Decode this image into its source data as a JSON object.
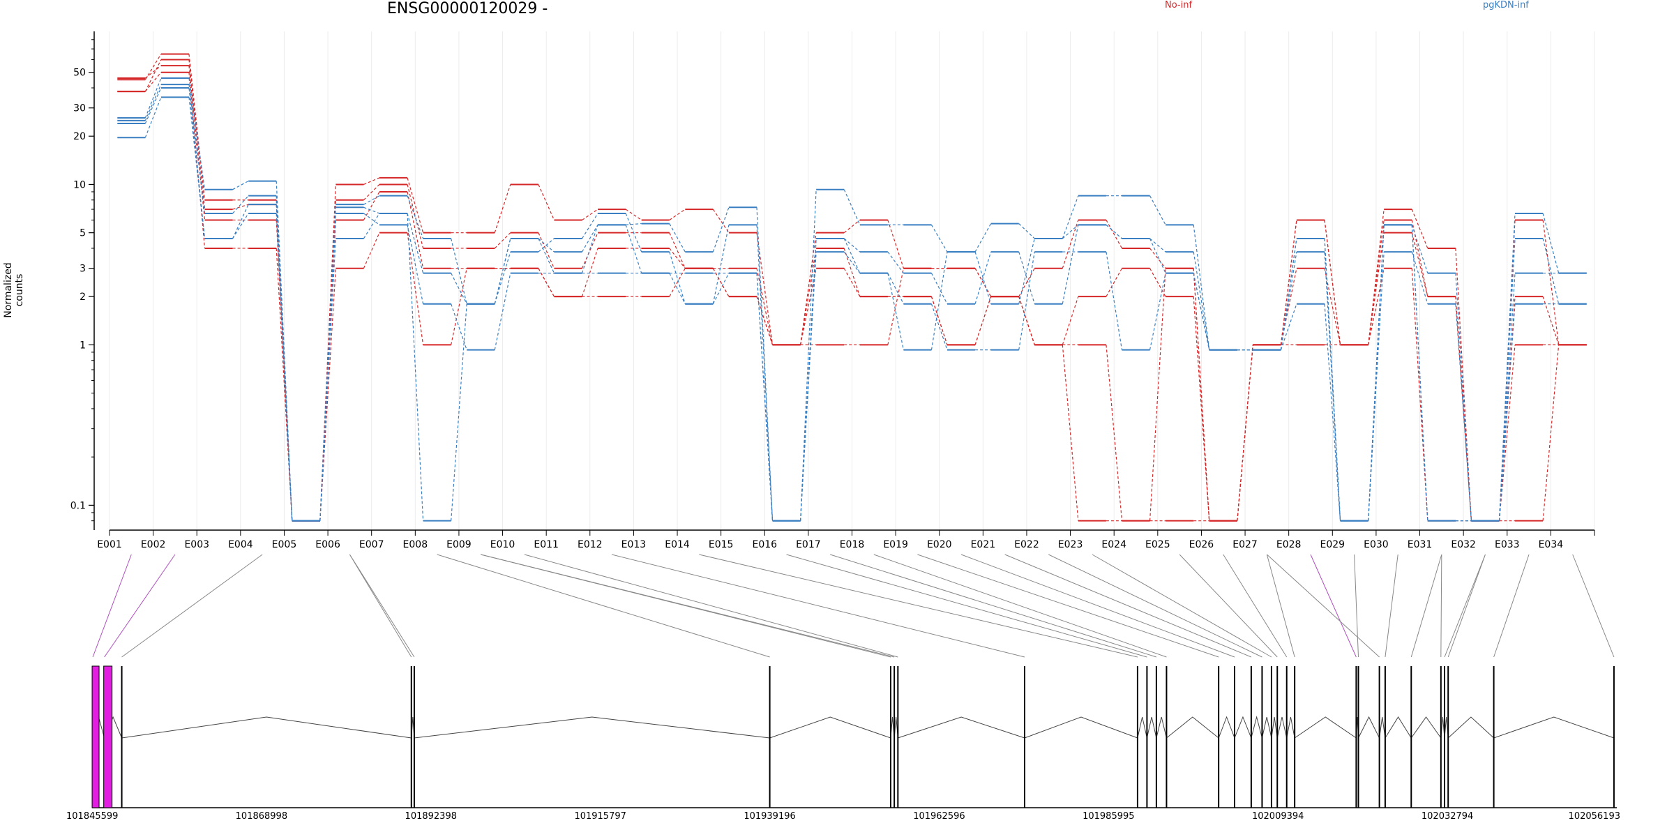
{
  "chart_data": {
    "type": "line",
    "title": "ENSG00000120029 -",
    "ylabel": "Normalized counts",
    "y_scale": "log",
    "ylim": [
      0.07,
      90
    ],
    "y_ticks": [
      {
        "value": 0.1,
        "label": "0.1"
      },
      {
        "value": 1,
        "label": "1"
      },
      {
        "value": 2,
        "label": "2"
      },
      {
        "value": 3,
        "label": "3"
      },
      {
        "value": 5,
        "label": "5"
      },
      {
        "value": 10,
        "label": "10"
      },
      {
        "value": 20,
        "label": "20"
      },
      {
        "value": 30,
        "label": "30"
      },
      {
        "value": 50,
        "label": "50"
      }
    ],
    "grid": "vertical",
    "legend": {
      "position": "top",
      "entries": [
        "No-inf",
        "pgKDN-inf"
      ]
    },
    "colors": {
      "No-inf": "#d62728",
      "pgKDN-inf": "#3a7fc1",
      "first_exons": "#e21fe0",
      "connector_first": "#b04fc0",
      "connector_default": "#888888"
    },
    "categories": [
      "E001",
      "E002",
      "E003",
      "E004",
      "E005",
      "E006",
      "E007",
      "E008",
      "E009",
      "E010",
      "E011",
      "E012",
      "E013",
      "E014",
      "E015",
      "E016",
      "E017",
      "E018",
      "E019",
      "E020",
      "E021",
      "E022",
      "E023",
      "E024",
      "E025",
      "E026",
      "E027",
      "E028",
      "E029",
      "E030",
      "E031",
      "E032",
      "E033",
      "E034"
    ],
    "series": [
      {
        "group": "No-inf",
        "values": [
          45,
          65,
          8,
          8,
          0.08,
          10,
          11,
          5,
          5,
          10,
          6,
          7,
          6,
          7,
          5,
          1,
          5,
          6,
          3,
          3,
          2,
          3,
          6,
          4,
          3,
          0.08,
          1,
          6,
          1,
          7,
          4,
          0.08,
          6,
          1
        ]
      },
      {
        "group": "No-inf",
        "values": [
          38,
          60,
          7,
          7.5,
          0.08,
          8,
          10,
          4,
          4,
          5,
          3,
          5,
          5,
          3,
          3,
          1,
          4,
          2,
          2,
          1,
          2,
          1,
          2,
          3,
          2,
          0.08,
          1,
          3,
          1,
          6,
          2,
          0.08,
          2,
          1
        ]
      },
      {
        "group": "No-inf",
        "values": [
          46,
          55,
          6,
          6,
          0.08,
          6,
          9,
          3,
          3,
          3,
          2,
          4,
          4,
          3,
          2,
          1,
          1,
          1,
          3,
          3,
          2,
          1,
          1,
          0.08,
          3,
          0.08,
          1,
          1,
          1,
          5,
          2,
          0.08,
          1,
          1
        ]
      },
      {
        "group": "No-inf",
        "values": [
          38,
          50,
          4,
          4,
          0.08,
          3,
          5,
          1,
          3,
          3,
          2,
          2,
          2,
          3,
          2,
          1,
          3,
          2,
          2,
          1,
          2,
          1,
          0.08,
          0.08,
          0.08,
          0.08,
          1,
          6,
          1,
          3,
          0.08,
          0.08,
          0.08,
          1
        ]
      },
      {
        "group": "pgKDN-inf",
        "values": [
          26,
          46,
          9.3,
          10.5,
          0.08,
          7.5,
          8.5,
          4.6,
          1.8,
          4.6,
          3.8,
          5.6,
          5.7,
          3.8,
          7.2,
          0.08,
          9.3,
          5.6,
          5.6,
          3.8,
          5.7,
          4.6,
          8.5,
          8.5,
          5.6,
          0.93,
          0.93,
          4.6,
          0.08,
          5.6,
          2.8,
          0.08,
          6.6,
          2.8
        ]
      },
      {
        "group": "pgKDN-inf",
        "values": [
          25,
          42,
          6.6,
          8.5,
          0.08,
          7.2,
          6.6,
          2.8,
          1.8,
          3.8,
          4.6,
          6.6,
          3.8,
          1.8,
          5.6,
          0.08,
          4.6,
          3.8,
          2.8,
          1.8,
          3.8,
          1.8,
          5.6,
          4.6,
          3.8,
          0.93,
          0.93,
          3.8,
          0.08,
          3.8,
          1.8,
          0.08,
          4.6,
          1.8
        ]
      },
      {
        "group": "pgKDN-inf",
        "values": [
          24,
          40,
          4.6,
          7.5,
          0.08,
          6.6,
          5.6,
          1.8,
          0.93,
          2.8,
          2.8,
          2.8,
          2.8,
          2.8,
          2.8,
          0.08,
          3.8,
          2.8,
          1.8,
          0.93,
          0.93,
          3.8,
          3.8,
          0.93,
          2.8,
          0.93,
          0.93,
          1.8,
          0.08,
          5.6,
          0.08,
          0.08,
          2.8,
          2.8
        ]
      },
      {
        "group": "pgKDN-inf",
        "values": [
          19.6,
          35,
          4.6,
          6.6,
          0.08,
          4.6,
          6.6,
          0.08,
          1.8,
          4.6,
          2.8,
          5.6,
          2.8,
          1.8,
          2.8,
          0.08,
          4.6,
          2.8,
          0.93,
          3.8,
          1.8,
          4.6,
          5.6,
          4.6,
          2.8,
          0.93,
          0.93,
          4.6,
          0.08,
          5.6,
          0.08,
          0.08,
          1.8,
          1.8
        ]
      }
    ],
    "gene_model": {
      "coordinate_labels": [
        "101845599",
        "101868998",
        "101892398",
        "101915797",
        "101939196",
        "101962596",
        "101985995",
        "102009394",
        "102032794",
        "102056193"
      ],
      "range": [
        101845599,
        102056193
      ],
      "exon_positions": [
        101845700,
        101847300,
        101849700,
        101889700,
        101890100,
        101939200,
        101955900,
        101956400,
        101956900,
        101974400,
        101990000,
        101991300,
        101992600,
        101994000,
        102001200,
        102003400,
        102005700,
        102007200,
        102008500,
        102009300,
        102010600,
        102011700,
        102020200,
        102020500,
        102023400,
        102024200,
        102027800,
        102031900,
        102032400,
        102032900,
        102039200,
        102055800
      ],
      "exon_to_segment": [
        0,
        1,
        3,
        5,
        5,
        7,
        8,
        8,
        9,
        11,
        13,
        15,
        16,
        17,
        18,
        19,
        20,
        21,
        22,
        24,
        25,
        26,
        27,
        28,
        26,
        29,
        30,
        30,
        31,
        31,
        32,
        33
      ]
    }
  }
}
